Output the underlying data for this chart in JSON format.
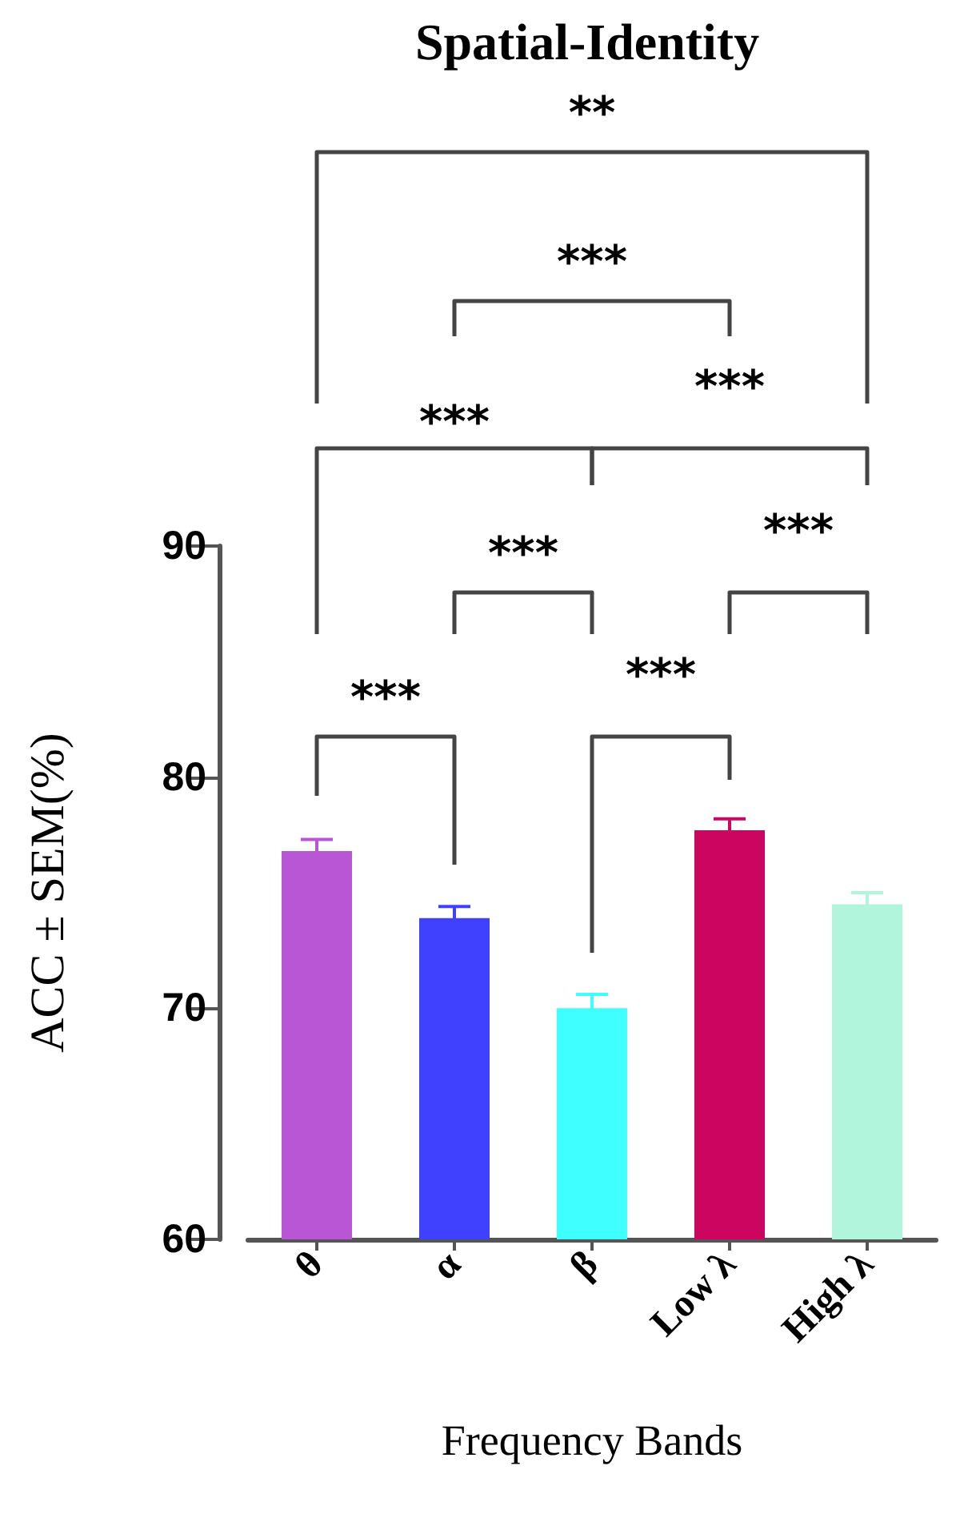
{
  "chart_data": {
    "type": "bar",
    "title": "Spatial-Identity",
    "xlabel": "Frequency Bands",
    "ylabel": "ACC ± SEM(%)",
    "categories": [
      "θ",
      "α",
      "β",
      "Low λ",
      "High λ"
    ],
    "values": [
      76.8,
      73.9,
      70.0,
      77.7,
      74.5
    ],
    "colors": [
      "#b856d6",
      "#4040ff",
      "#40ffff",
      "#cc0660",
      "#b0f5dc"
    ],
    "errors": [
      0.5,
      0.5,
      0.6,
      0.5,
      0.5
    ],
    "ylim": [
      60,
      90
    ],
    "yticks": [
      60,
      70,
      80,
      90
    ],
    "grid": false,
    "annotations": [
      "**",
      "***",
      "***",
      "***",
      "***",
      "***",
      "***",
      "***"
    ]
  }
}
